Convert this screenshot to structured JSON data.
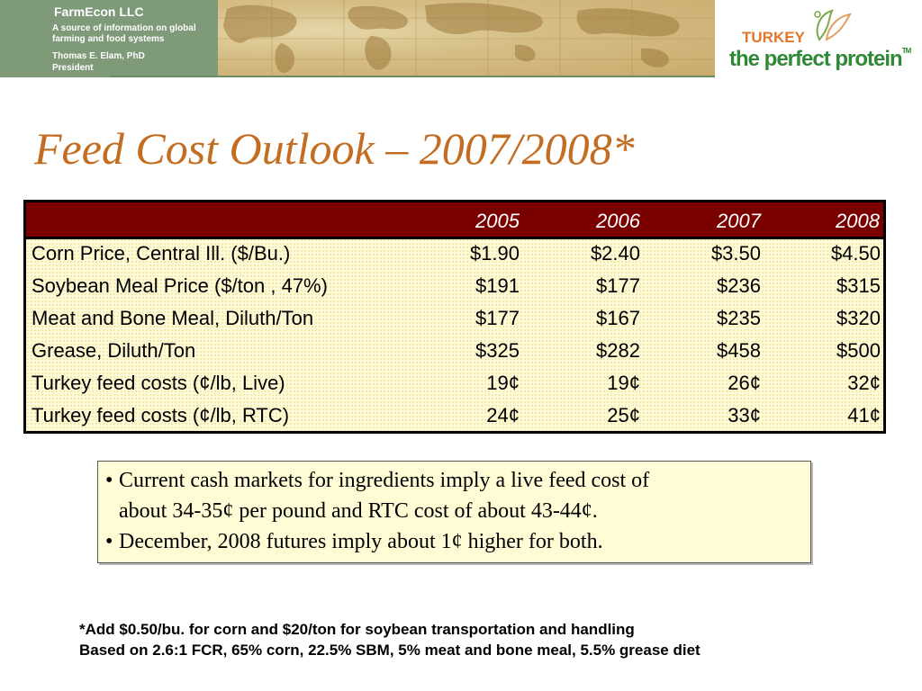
{
  "header": {
    "brand_title": "FarmEcon LLC",
    "brand_desc": "A source of information on global farming and food systems",
    "brand_author_name": "Thomas E. Elam, PhD",
    "brand_author_role": "President"
  },
  "logo": {
    "turkey": "TURKEY",
    "tagline": "the perfect protein",
    "tm": "TM"
  },
  "title": "Feed Cost Outlook – 2007/2008*",
  "table": {
    "years": [
      "2005",
      "2006",
      "2007",
      "2008"
    ],
    "rows": [
      {
        "label": "Corn Price, Central Ill. ($/Bu.)",
        "values": [
          "$1.90",
          "$2.40",
          "$3.50",
          "$4.50"
        ]
      },
      {
        "label": "Soybean Meal Price ($/ton , 47%)",
        "values": [
          "$191",
          "$177",
          "$236",
          "$315"
        ]
      },
      {
        "label": "Meat and Bone Meal, Diluth/Ton",
        "values": [
          "$177",
          "$167",
          "$235",
          "$320"
        ]
      },
      {
        "label": "Grease, Diluth/Ton",
        "values": [
          "$325",
          "$282",
          "$458",
          "$500"
        ]
      },
      {
        "label": "Turkey feed costs (¢/lb, Live)",
        "values": [
          "19¢",
          "19¢",
          "26¢",
          "32¢"
        ]
      },
      {
        "label": "Turkey feed costs (¢/lb, RTC)",
        "values": [
          "24¢",
          "25¢",
          "33¢",
          "41¢"
        ]
      }
    ]
  },
  "notes": {
    "bullet": "•",
    "line1": "Current cash markets for ingredients imply a live feed cost of",
    "line1_cont": "about 34-35¢ per pound and RTC cost of about 43-44¢.",
    "line2": "December, 2008 futures imply about 1¢ higher for both."
  },
  "footnotes": {
    "line1": "*Add $0.50/bu. for corn and $20/ton for soybean transportation and handling",
    "line2": "Based on 2.6:1 FCR, 65% corn, 22.5% SBM, 5% meat and bone meal, 5.5% grease diet"
  }
}
